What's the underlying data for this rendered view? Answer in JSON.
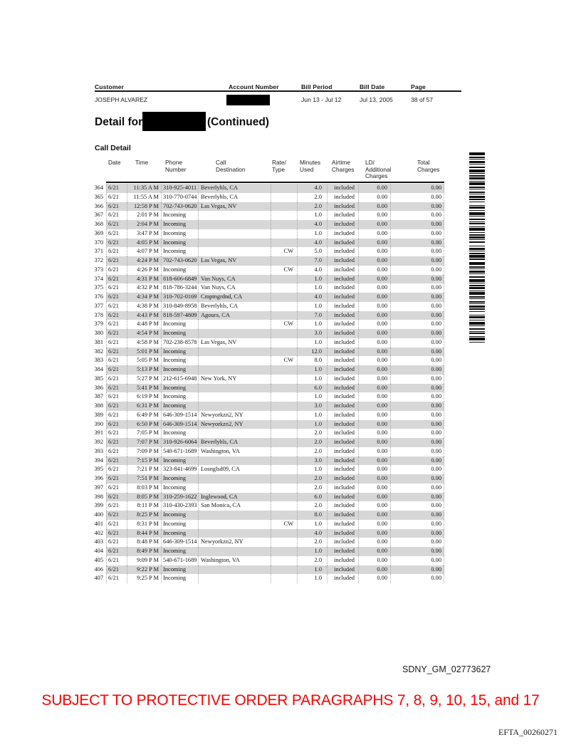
{
  "account_header": {
    "customer_label": "Customer",
    "customer_value": "JOSEPH ALVAREZ",
    "account_number_label": "Account Number",
    "account_number_value": "",
    "bill_period_label": "Bill Period",
    "bill_period_value": "Jun 13 - Jul 12",
    "bill_date_label": "Bill Date",
    "bill_date_value": "Jul 13, 2005",
    "page_label": "Page",
    "page_value": "38 of 57"
  },
  "detail_heading": {
    "prefix": "Detail for",
    "suffix": "(Continued)"
  },
  "section_title": "Call Detail",
  "call_table": {
    "headers": [
      "Date",
      "Time",
      "Phone\nNumber",
      "Call\nDestination",
      "Rate/\nType",
      "Minutes\nUsed",
      "Airtime\nCharges",
      "LD/\nAdditional\nCharges",
      "Total\nCharges"
    ],
    "rows": [
      [
        "364",
        "6/21",
        "11:35 A M",
        "310-925-4011",
        "Beverlyhls, CA",
        "",
        "4.0",
        "included",
        "0.00",
        "0.00"
      ],
      [
        "365",
        "6/21",
        "11:55 A M",
        "310-770-0744",
        "Beverlyhls, CA",
        "",
        "2.0",
        "included",
        "0.00",
        "0.00"
      ],
      [
        "366",
        "6/21",
        "12:58 P M",
        "702-743-0620",
        "Las Vegas, NV",
        "",
        "2.0",
        "included",
        "0.00",
        "0.00"
      ],
      [
        "367",
        "6/21",
        "2:01 P M",
        "Incoming",
        "",
        "",
        "1.0",
        "included",
        "0.00",
        "0.00"
      ],
      [
        "368",
        "6/21",
        "2:04 P M",
        "Incoming",
        "",
        "",
        "4.0",
        "included",
        "0.00",
        "0.00"
      ],
      [
        "369",
        "6/21",
        "3:47 P M",
        "Incoming",
        "",
        "",
        "1.0",
        "included",
        "0.00",
        "0.00"
      ],
      [
        "370",
        "6/21",
        "4:05 P M",
        "Incoming",
        "",
        "",
        "4.0",
        "included",
        "0.00",
        "0.00"
      ],
      [
        "371",
        "6/21",
        "4:07 P M",
        "Incoming",
        "",
        "CW",
        "5.0",
        "included",
        "0.00",
        "0.00"
      ],
      [
        "372",
        "6/21",
        "4:24 P M",
        "702-743-0620",
        "Las Vegas, NV",
        "",
        "7.0",
        "included",
        "0.00",
        "0.00"
      ],
      [
        "373",
        "6/21",
        "4:26 P M",
        "Incoming",
        "",
        "CW",
        "4.0",
        "included",
        "0.00",
        "0.00"
      ],
      [
        "374",
        "6/21",
        "4:31 P M",
        "818-606-6849",
        "Van Nuys, CA",
        "",
        "1.0",
        "included",
        "0.00",
        "0.00"
      ],
      [
        "375",
        "6/21",
        "4:32 P M",
        "818-786-3244",
        "Van Nuys, CA",
        "",
        "1.0",
        "included",
        "0.00",
        "0.00"
      ],
      [
        "376",
        "6/21",
        "4:34 P M",
        "310-702-0169",
        "Cmptngrdnd, CA",
        "",
        "4.0",
        "included",
        "0.00",
        "0.00"
      ],
      [
        "377",
        "6/21",
        "4:38 P M",
        "310-849-8958",
        "Beverlyhls, CA",
        "",
        "1.0",
        "included",
        "0.00",
        "0.00"
      ],
      [
        "378",
        "6/21",
        "4:43 P M",
        "818-597-4809",
        "Agoura, CA",
        "",
        "7.0",
        "included",
        "0.00",
        "0.00"
      ],
      [
        "379",
        "6/21",
        "4:48 P M",
        "Incoming",
        "",
        "CW",
        "1.0",
        "included",
        "0.00",
        "0.00"
      ],
      [
        "380",
        "6/21",
        "4:54 P M",
        "Incoming",
        "",
        "",
        "3.0",
        "included",
        "0.00",
        "0.00"
      ],
      [
        "381",
        "6/21",
        "4:58 P M",
        "702-238-8578",
        "Las Vegas, NV",
        "",
        "1.0",
        "included",
        "0.00",
        "0.00"
      ],
      [
        "382",
        "6/21",
        "5:01 P M",
        "Incoming",
        "",
        "",
        "12.0",
        "included",
        "0.00",
        "0.00"
      ],
      [
        "383",
        "6/21",
        "5:05 P M",
        "Incoming",
        "",
        "CW",
        "8.0",
        "included",
        "0.00",
        "0.00"
      ],
      [
        "384",
        "6/21",
        "5:13 P M",
        "Incoming",
        "",
        "",
        "1.0",
        "included",
        "0.00",
        "0.00"
      ],
      [
        "385",
        "6/21",
        "5:27 P M",
        "212-615-6948",
        "New York, NY",
        "",
        "1.0",
        "included",
        "0.00",
        "0.00"
      ],
      [
        "386",
        "6/21",
        "5:41 P M",
        "Incoming",
        "",
        "",
        "6.0",
        "included",
        "0.00",
        "0.00"
      ],
      [
        "387",
        "6/21",
        "6:19 P M",
        "Incoming",
        "",
        "",
        "1.0",
        "included",
        "0.00",
        "0.00"
      ],
      [
        "388",
        "6/21",
        "6:31 P M",
        "Incoming",
        "",
        "",
        "3.0",
        "included",
        "0.00",
        "0.00"
      ],
      [
        "389",
        "6/21",
        "6:49 P M",
        "646-309-1514",
        "Newyorkzn2, NY",
        "",
        "1.0",
        "included",
        "0.00",
        "0.00"
      ],
      [
        "390",
        "6/21",
        "6:50 P M",
        "646-309-1514",
        "Newyorkzn2, NY",
        "",
        "1.0",
        "included",
        "0.00",
        "0.00"
      ],
      [
        "391",
        "6/21",
        "7:05 P M",
        "Incoming",
        "",
        "",
        "2.0",
        "included",
        "0.00",
        "0.00"
      ],
      [
        "392",
        "6/21",
        "7:07 P M",
        "310-926-6064",
        "Beverlyhls, CA",
        "",
        "2.0",
        "included",
        "0.00",
        "0.00"
      ],
      [
        "393",
        "6/21",
        "7:09 P M",
        "540-671-1689",
        "Washington, VA",
        "",
        "2.0",
        "included",
        "0.00",
        "0.00"
      ],
      [
        "394",
        "6/21",
        "7:15 P M",
        "Incoming",
        "",
        "",
        "3.0",
        "included",
        "0.00",
        "0.00"
      ],
      [
        "395",
        "6/21",
        "7:21 P M",
        "323-841-4699",
        "Losnglsd09, CA",
        "",
        "1.0",
        "included",
        "0.00",
        "0.00"
      ],
      [
        "396",
        "6/21",
        "7:51 P M",
        "Incoming",
        "",
        "",
        "2.0",
        "included",
        "0.00",
        "0.00"
      ],
      [
        "397",
        "6/21",
        "8:03 P M",
        "Incoming",
        "",
        "",
        "2.0",
        "included",
        "0.00",
        "0.00"
      ],
      [
        "398",
        "6/21",
        "8:05 P M",
        "310-259-1622",
        "Inglewood, CA",
        "",
        "6.0",
        "included",
        "0.00",
        "0.00"
      ],
      [
        "399",
        "6/21",
        "8:11 P M",
        "310-430-2393",
        "San Monica, CA",
        "",
        "2.0",
        "included",
        "0.00",
        "0.00"
      ],
      [
        "400",
        "6/21",
        "8:25 P M",
        "Incoming",
        "",
        "",
        "8.0",
        "included",
        "0.00",
        "0.00"
      ],
      [
        "401",
        "6/21",
        "8:31 P M",
        "Incoming",
        "",
        "CW",
        "1.0",
        "included",
        "0.00",
        "0.00"
      ],
      [
        "402",
        "6/21",
        "8:44 P M",
        "Incoming",
        "",
        "",
        "4.0",
        "included",
        "0.00",
        "0.00"
      ],
      [
        "403",
        "6/21",
        "8:48 P M",
        "646-309-1514",
        "Newyorkzn2, NY",
        "",
        "2.0",
        "included",
        "0.00",
        "0.00"
      ],
      [
        "404",
        "6/21",
        "8:49 P M",
        "Incoming",
        "",
        "",
        "1.0",
        "included",
        "0.00",
        "0.00"
      ],
      [
        "405",
        "6/21",
        "9:09 P M",
        "540-671-1689",
        "Washington, VA",
        "",
        "2.0",
        "included",
        "0.00",
        "0.00"
      ],
      [
        "406",
        "6/21",
        "9:22 P M",
        "Incoming",
        "",
        "",
        "1.0",
        "included",
        "0.00",
        "0.00"
      ],
      [
        "407",
        "6/21",
        "9:25 P M",
        "Incoming",
        "",
        "",
        "1.0",
        "included",
        "0.00",
        "0.00"
      ]
    ]
  },
  "barcode": {
    "pattern": [
      4,
      2,
      2,
      1,
      1,
      2,
      3,
      1,
      1,
      3,
      2,
      2,
      4,
      1,
      1,
      2,
      2,
      1,
      3,
      2,
      1,
      1,
      4,
      2,
      2,
      1,
      1,
      3,
      2,
      1,
      1,
      2,
      3,
      1,
      2,
      2,
      1,
      4,
      1,
      1,
      3,
      2,
      1,
      2,
      4,
      1,
      1,
      3,
      2,
      2,
      1,
      1,
      2,
      3,
      1,
      1,
      4,
      2,
      1,
      2,
      2,
      1,
      3,
      1,
      1,
      2,
      2,
      4,
      1,
      2,
      3,
      1,
      1,
      2,
      2,
      1,
      4,
      1,
      2,
      3
    ]
  },
  "footer": {
    "bates_sdny": "SDNY_GM_02773627",
    "protective_order": "SUBJECT TO PROTECTIVE ORDER PARAGRAPHS 7, 8, 9, 10, 15, and 17",
    "protective_color": "#fe0000",
    "bates_efta": "EFTA_00260271"
  }
}
